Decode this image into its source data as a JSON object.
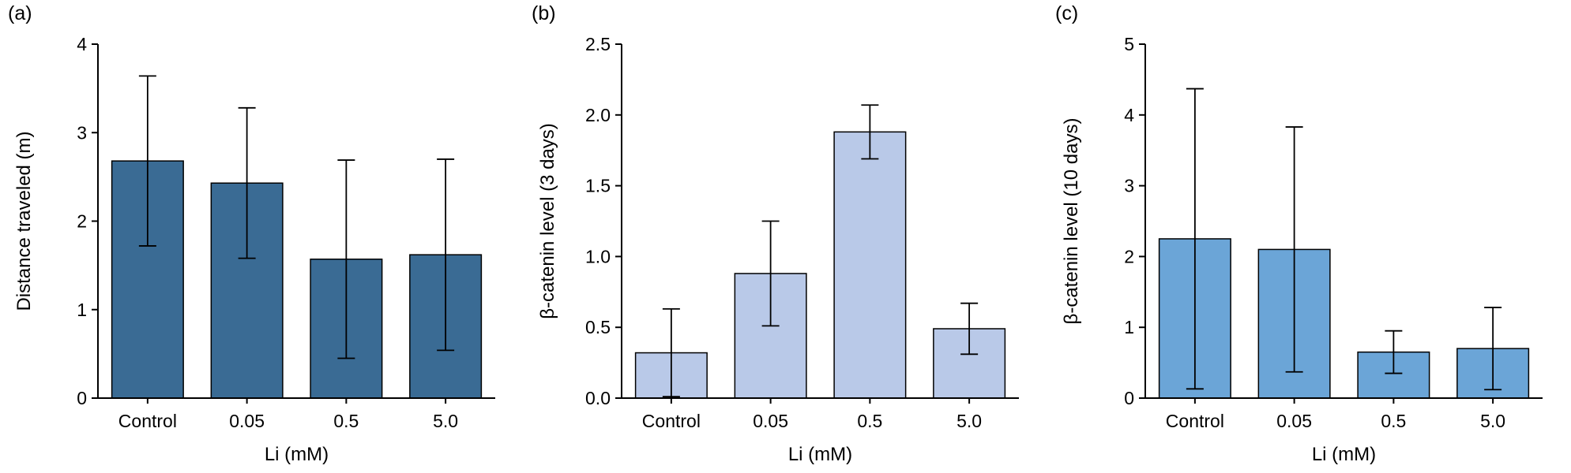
{
  "figure": {
    "background": "#ffffff"
  },
  "style": {
    "axis_color": "#000000",
    "bar_border_color": "#000000",
    "error_bar_color": "#000000"
  },
  "chart_data": [
    {
      "id": "a",
      "panel_label": "(a)",
      "type": "bar",
      "categories": [
        "Control",
        "0.05",
        "0.5",
        "5.0"
      ],
      "values": [
        2.68,
        2.43,
        1.57,
        1.62
      ],
      "errors": [
        0.96,
        0.85,
        1.12,
        1.08
      ],
      "xlabel": "Li (mM)",
      "ylabel": "Distance traveled (m)",
      "ylim": [
        0,
        4
      ],
      "yticks": [
        0,
        1,
        2,
        3,
        4
      ],
      "ytick_decimals": 0,
      "bar_color": "#3a6b94",
      "grid": false,
      "legend": false
    },
    {
      "id": "b",
      "panel_label": "(b)",
      "type": "bar",
      "categories": [
        "Control",
        "0.05",
        "0.5",
        "5.0"
      ],
      "values": [
        0.32,
        0.88,
        1.88,
        0.49
      ],
      "errors": [
        0.31,
        0.37,
        0.19,
        0.18
      ],
      "xlabel": "Li (mM)",
      "ylabel": "β-catenin level (3 days)",
      "ylim": [
        0,
        2.5
      ],
      "yticks": [
        0,
        0.5,
        1.0,
        1.5,
        2.0,
        2.5
      ],
      "ytick_decimals": 1,
      "bar_color": "#b9c9e8",
      "grid": false,
      "legend": false
    },
    {
      "id": "c",
      "panel_label": "(c)",
      "type": "bar",
      "categories": [
        "Control",
        "0.05",
        "0.5",
        "5.0"
      ],
      "values": [
        2.25,
        2.1,
        0.65,
        0.7
      ],
      "errors": [
        2.12,
        1.73,
        0.3,
        0.58
      ],
      "xlabel": "Li (mM)",
      "ylabel": "β-catenin level (10 days)",
      "ylim": [
        0,
        5
      ],
      "yticks": [
        0,
        1,
        2,
        3,
        4,
        5
      ],
      "ytick_decimals": 0,
      "bar_color": "#6ba5d7",
      "grid": false,
      "legend": false
    }
  ]
}
